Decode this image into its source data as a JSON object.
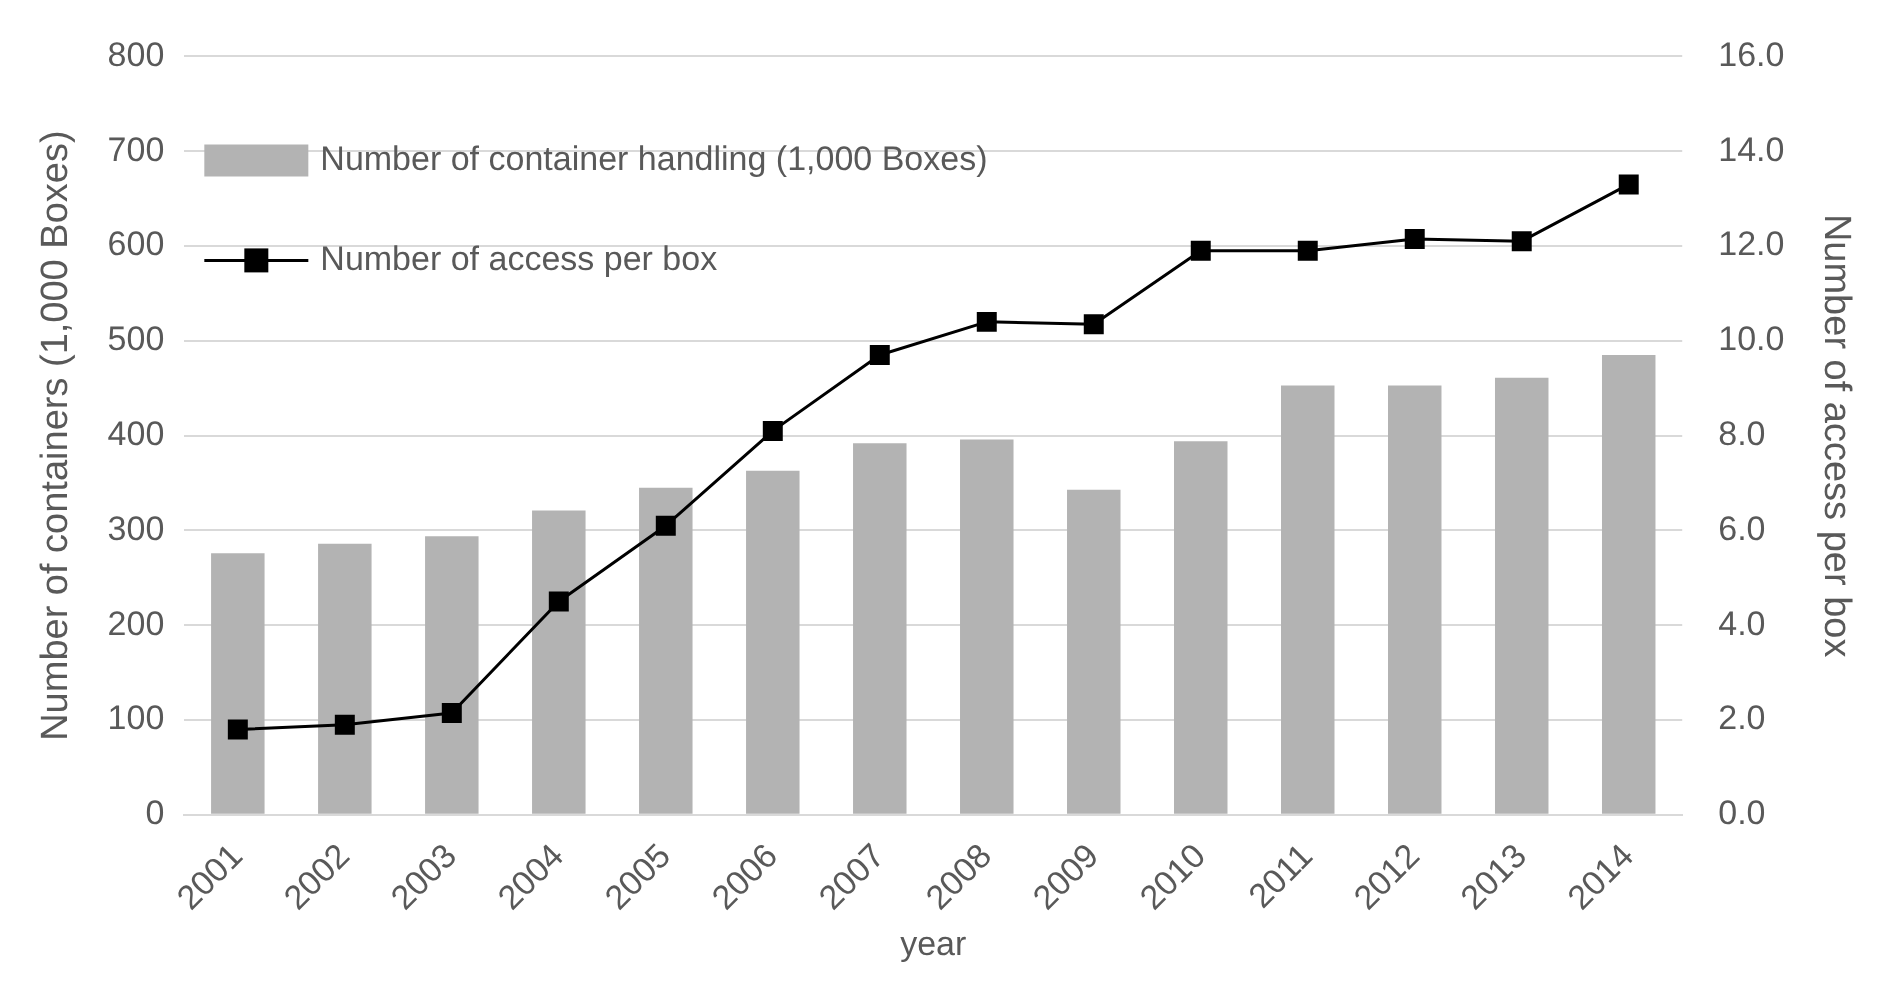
{
  "chart_data": {
    "type": "bar",
    "xlabel": "year",
    "ylabel": "Number of containers (1,000 Boxes)",
    "y2label": "Number of access per box",
    "categories": [
      "2001",
      "2002",
      "2003",
      "2004",
      "2005",
      "2006",
      "2007",
      "2008",
      "2009",
      "2010",
      "2011",
      "2012",
      "2013",
      "2014"
    ],
    "series": [
      {
        "name": "Number of container handling (1,000 Boxes)",
        "color": "#b3b3b3",
        "values": [
          276,
          286,
          294,
          321,
          345,
          363,
          392,
          396,
          343,
          394,
          453,
          453,
          461,
          485
        ]
      },
      {
        "name": "Number of access per box",
        "type": "line",
        "axis": "y2",
        "color": "#000000",
        "marker": "square",
        "values": [
          1.8,
          1.9,
          2.15,
          4.5,
          6.1,
          8.1,
          9.7,
          10.4,
          10.35,
          11.9,
          11.9,
          12.15,
          12.1,
          13.3
        ]
      }
    ],
    "ylim": [
      0,
      800
    ],
    "yticks": [
      0,
      100,
      200,
      300,
      400,
      500,
      600,
      700,
      800
    ],
    "y2lim": [
      0,
      16
    ],
    "y2ticks": [
      {
        "value": 0,
        "label": "0.0"
      },
      {
        "value": 2,
        "label": "2.0"
      },
      {
        "value": 4,
        "label": "4.0"
      },
      {
        "value": 6,
        "label": "6.0"
      },
      {
        "value": 8,
        "label": "8.0"
      },
      {
        "value": 10,
        "label": "10.0"
      },
      {
        "value": 12,
        "label": "12.0"
      },
      {
        "value": 14,
        "label": "14.0"
      },
      {
        "value": 16,
        "label": "16.0"
      }
    ],
    "grid": "y",
    "legend": "top left"
  }
}
